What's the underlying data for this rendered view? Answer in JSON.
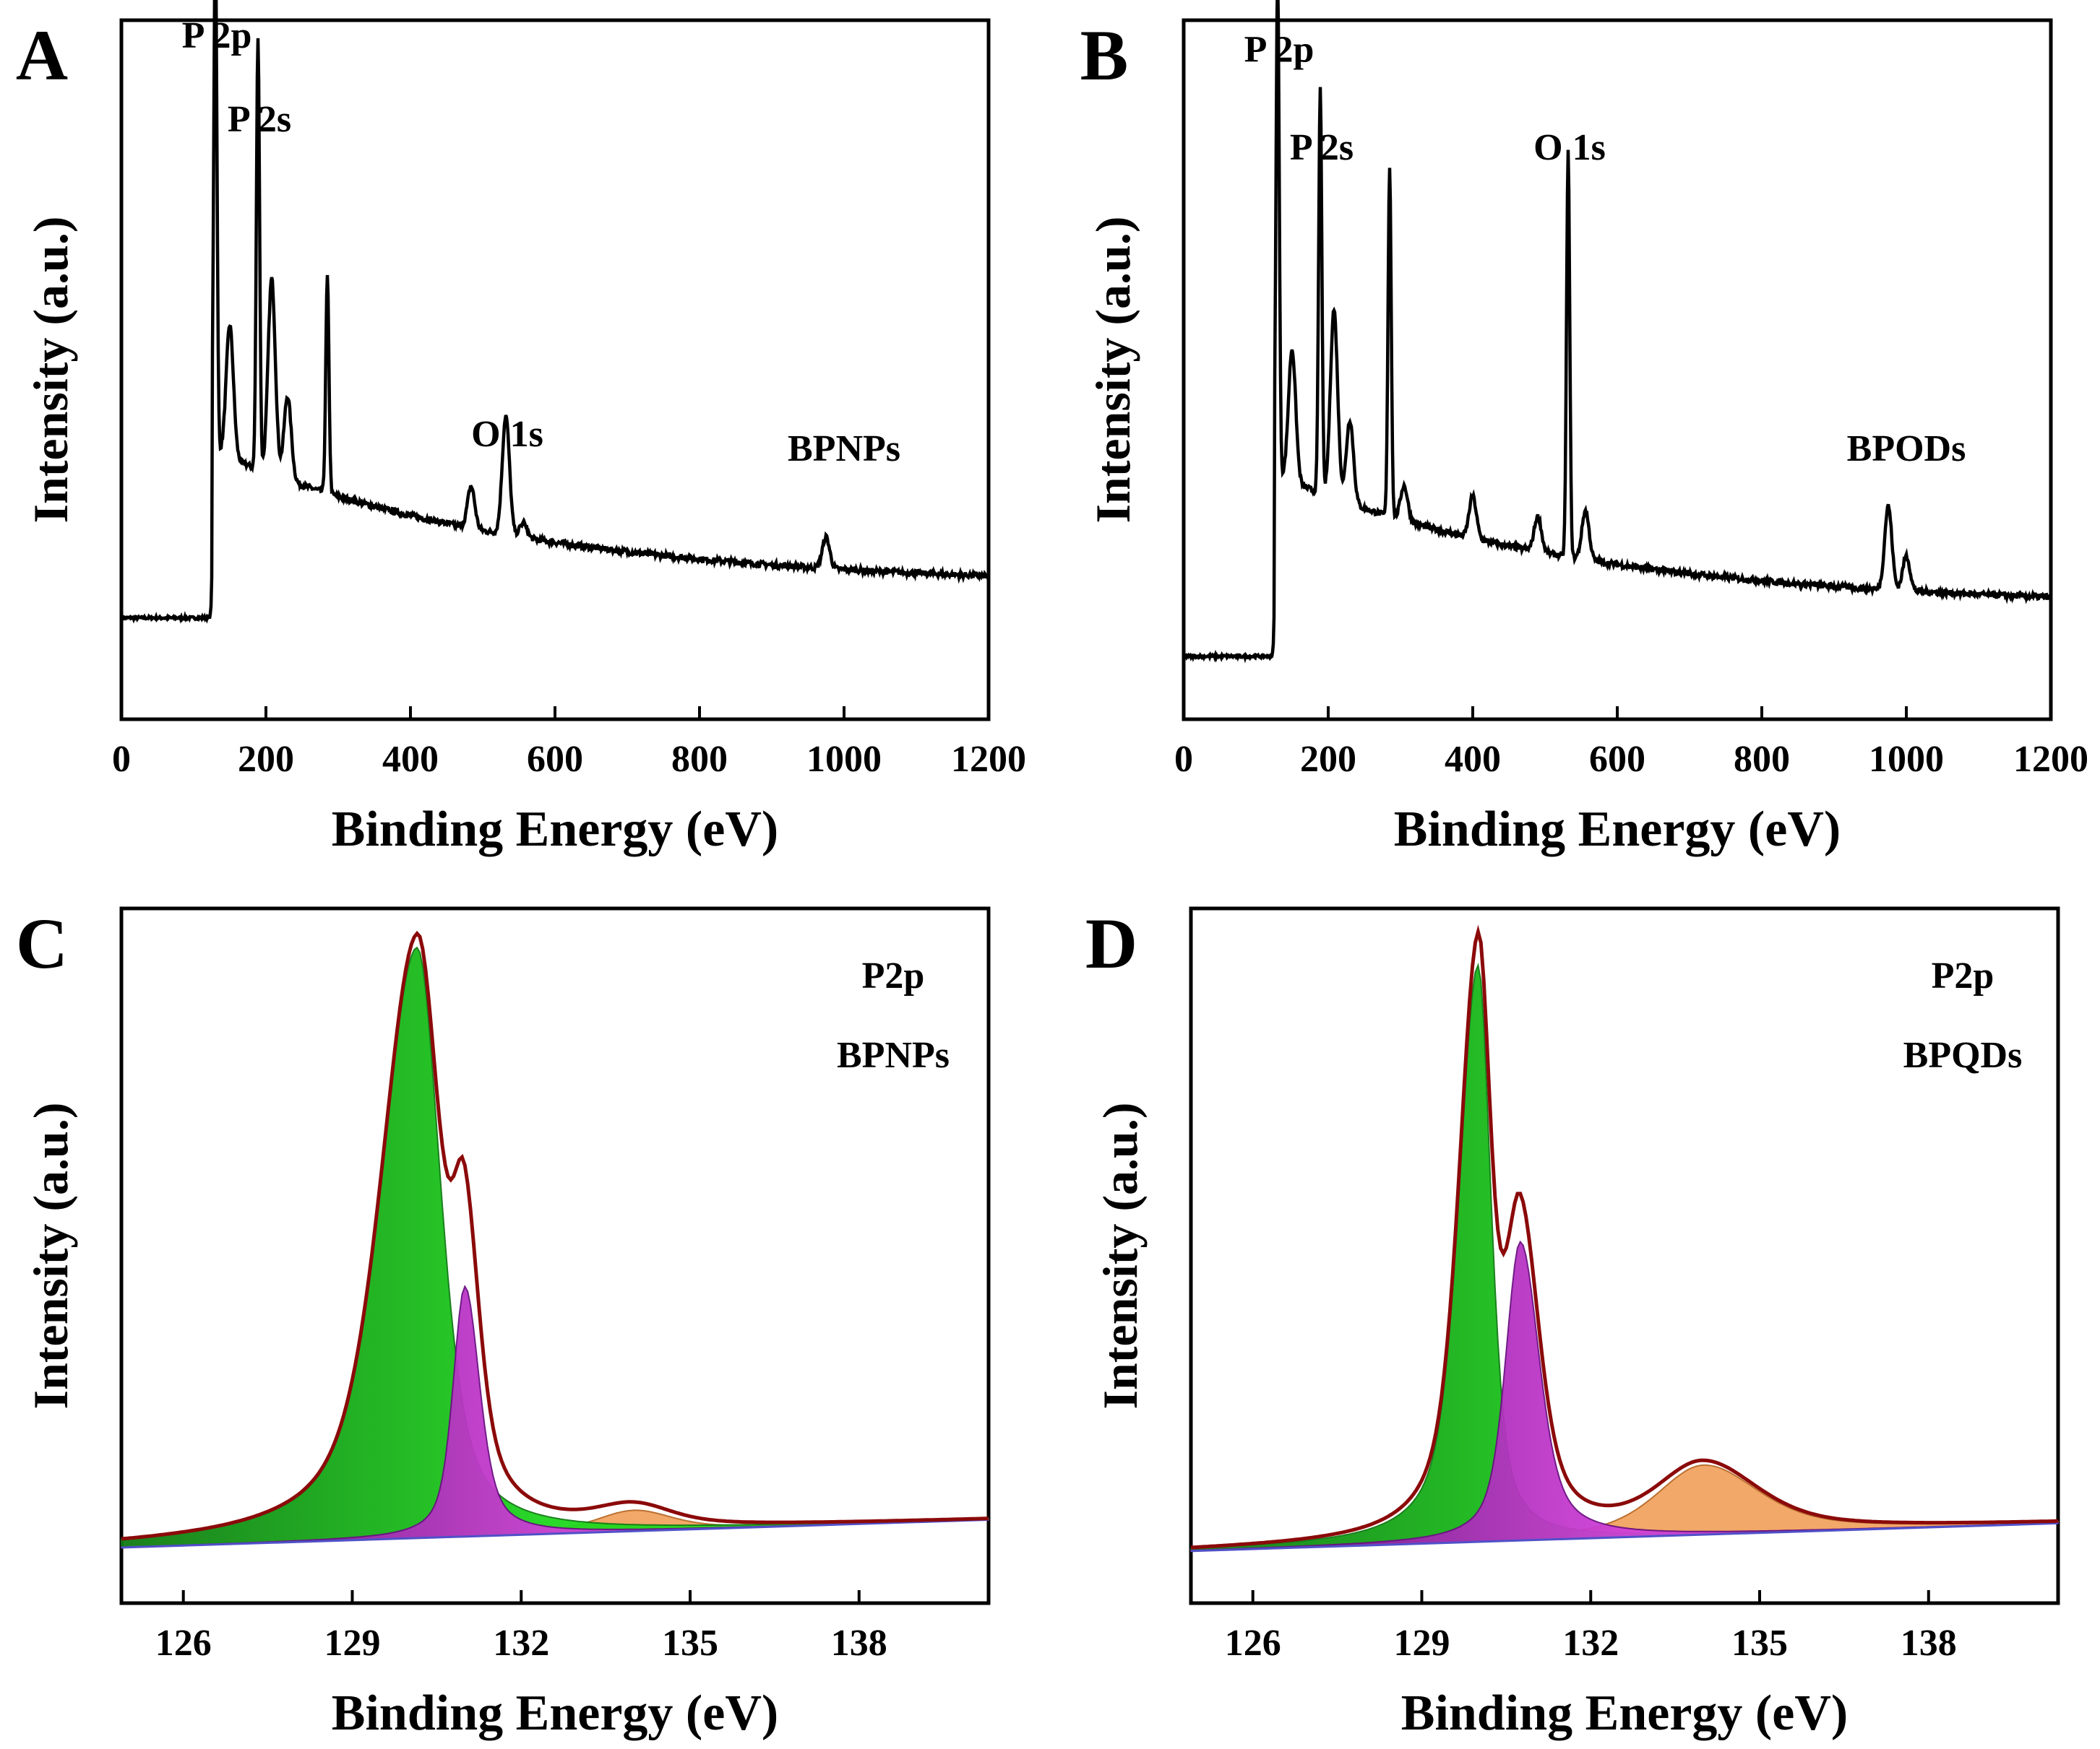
{
  "colors": {
    "frame": "#000000",
    "envelope": "#8b0a0a",
    "green_fill": "#1fd81f",
    "green_dark": "#0f7a12",
    "magenta_fill": "#d040d8",
    "purple_dark": "#6a0f82",
    "orange_fill": "#f2a460",
    "orange_dark": "#b86a28",
    "baseline_blue": "#5050c8"
  },
  "chart_data": [
    {
      "panel": "A",
      "type": "line",
      "xlabel": "Binding Energy (eV)",
      "ylabel": "Intensity (a.u.)",
      "xlim": [
        0,
        1200
      ],
      "xticks": [
        "0",
        "200",
        "400",
        "600",
        "800",
        "1000",
        "1200"
      ],
      "sample_label": "BPNPs",
      "peak_labels": [
        {
          "text": "P 2p",
          "x": 130
        },
        {
          "text": "P 2s",
          "x": 189
        },
        {
          "text": "O 1s",
          "x": 532
        }
      ],
      "series": [
        {
          "peaks": [
            {
              "x": 130,
              "height": 0.74
            },
            {
              "x": 150,
              "height": 0.19
            },
            {
              "x": 189,
              "height": 0.62
            },
            {
              "x": 208,
              "height": 0.28
            },
            {
              "x": 230,
              "height": 0.12
            },
            {
              "x": 285,
              "height": 0.31
            },
            {
              "x": 484,
              "height": 0.06
            },
            {
              "x": 532,
              "height": 0.17
            },
            {
              "x": 556,
              "height": 0.02
            },
            {
              "x": 975,
              "height": 0.045
            }
          ],
          "pre_edge": 0.145,
          "step_height": 0.24,
          "decay_end": 0.19
        }
      ]
    },
    {
      "panel": "B",
      "type": "line",
      "xlabel": "Binding Energy (eV)",
      "ylabel": "Intensity (a.u.)",
      "xlim": [
        0,
        1200
      ],
      "xticks": [
        "0",
        "200",
        "400",
        "600",
        "800",
        "1000",
        "1200"
      ],
      "sample_label": "BPODs",
      "peak_labels": [
        {
          "text": "P 2p",
          "x": 130
        },
        {
          "text": "P 2s",
          "x": 189
        },
        {
          "text": "O 1s",
          "x": 532
        }
      ],
      "series": [
        {
          "peaks": [
            {
              "x": 130,
              "height": 0.72
            },
            {
              "x": 150,
              "height": 0.19
            },
            {
              "x": 189,
              "height": 0.58
            },
            {
              "x": 208,
              "height": 0.27
            },
            {
              "x": 230,
              "height": 0.12
            },
            {
              "x": 285,
              "height": 0.5
            },
            {
              "x": 305,
              "height": 0.05
            },
            {
              "x": 400,
              "height": 0.06
            },
            {
              "x": 490,
              "height": 0.05
            },
            {
              "x": 532,
              "height": 0.58
            },
            {
              "x": 556,
              "height": 0.07
            },
            {
              "x": 975,
              "height": 0.12
            },
            {
              "x": 1000,
              "height": 0.05
            }
          ],
          "pre_edge": 0.09,
          "step_height": 0.26,
          "decay_end": 0.16
        }
      ]
    },
    {
      "panel": "C",
      "type": "area",
      "xlabel": "Binding Energy (eV)",
      "ylabel": "Intensity (a.u.)",
      "xlim": [
        124.9,
        140.3
      ],
      "xticks": [
        126,
        129,
        132,
        135,
        138
      ],
      "annotations": [
        "P2p",
        "BPNPs"
      ],
      "baseline": [
        0.08,
        0.12
      ],
      "components": [
        {
          "name": "green",
          "center": 130.15,
          "height": 0.85,
          "width_left": 0.85,
          "width_right": 0.55
        },
        {
          "name": "magenta",
          "center": 131.0,
          "height": 0.36,
          "width_left": 0.28,
          "width_right": 0.35
        },
        {
          "name": "orange",
          "center": 134.0,
          "height": 0.03,
          "width_left": 0.9,
          "width_right": 0.9
        }
      ]
    },
    {
      "panel": "D",
      "type": "area",
      "xlabel": "Binding Energy (eV)",
      "ylabel": "Intensity (a.u.)",
      "xlim": [
        124.9,
        140.3
      ],
      "xticks": [
        126,
        129,
        132,
        135,
        138
      ],
      "annotations": [
        "P2p",
        "BPQDs"
      ],
      "baseline": [
        0.075,
        0.115
      ],
      "components": [
        {
          "name": "green",
          "center": 130.0,
          "height": 0.83,
          "width_left": 0.45,
          "width_right": 0.3
        },
        {
          "name": "magenta",
          "center": 130.75,
          "height": 0.43,
          "width_left": 0.35,
          "width_right": 0.45
        },
        {
          "name": "orange",
          "center": 134.0,
          "height": 0.1,
          "width_left": 1.1,
          "width_right": 1.3
        }
      ]
    }
  ],
  "panels": {
    "A": {
      "letter": "A"
    },
    "B": {
      "letter": "B"
    },
    "C": {
      "letter": "C"
    },
    "D": {
      "letter": "D"
    }
  }
}
